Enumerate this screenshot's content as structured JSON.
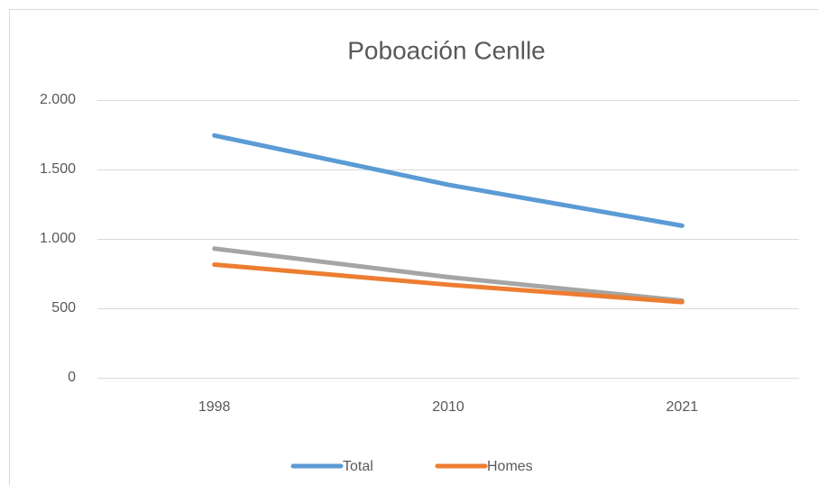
{
  "chart_data": {
    "type": "line",
    "title": "Poboación Cenlle",
    "categories": [
      "1998",
      "2010",
      "2021"
    ],
    "series": [
      {
        "name": "Total",
        "color": "#5b9bd5",
        "values": [
          1745,
          1390,
          1095
        ]
      },
      {
        "name": "Homes",
        "color": "#ed7d31",
        "values": [
          815,
          670,
          545
        ]
      },
      {
        "color": "#a5a5a5",
        "values": [
          930,
          725,
          555
        ]
      }
    ],
    "ylim": [
      0,
      2000
    ],
    "yticks": [
      0,
      500,
      {
        "value": 1000,
        "label": "1.000"
      },
      {
        "value": 1500,
        "label": "1.500"
      },
      {
        "value": 2000,
        "label": "2.000"
      }
    ],
    "grid": true,
    "legend": "bottom"
  }
}
